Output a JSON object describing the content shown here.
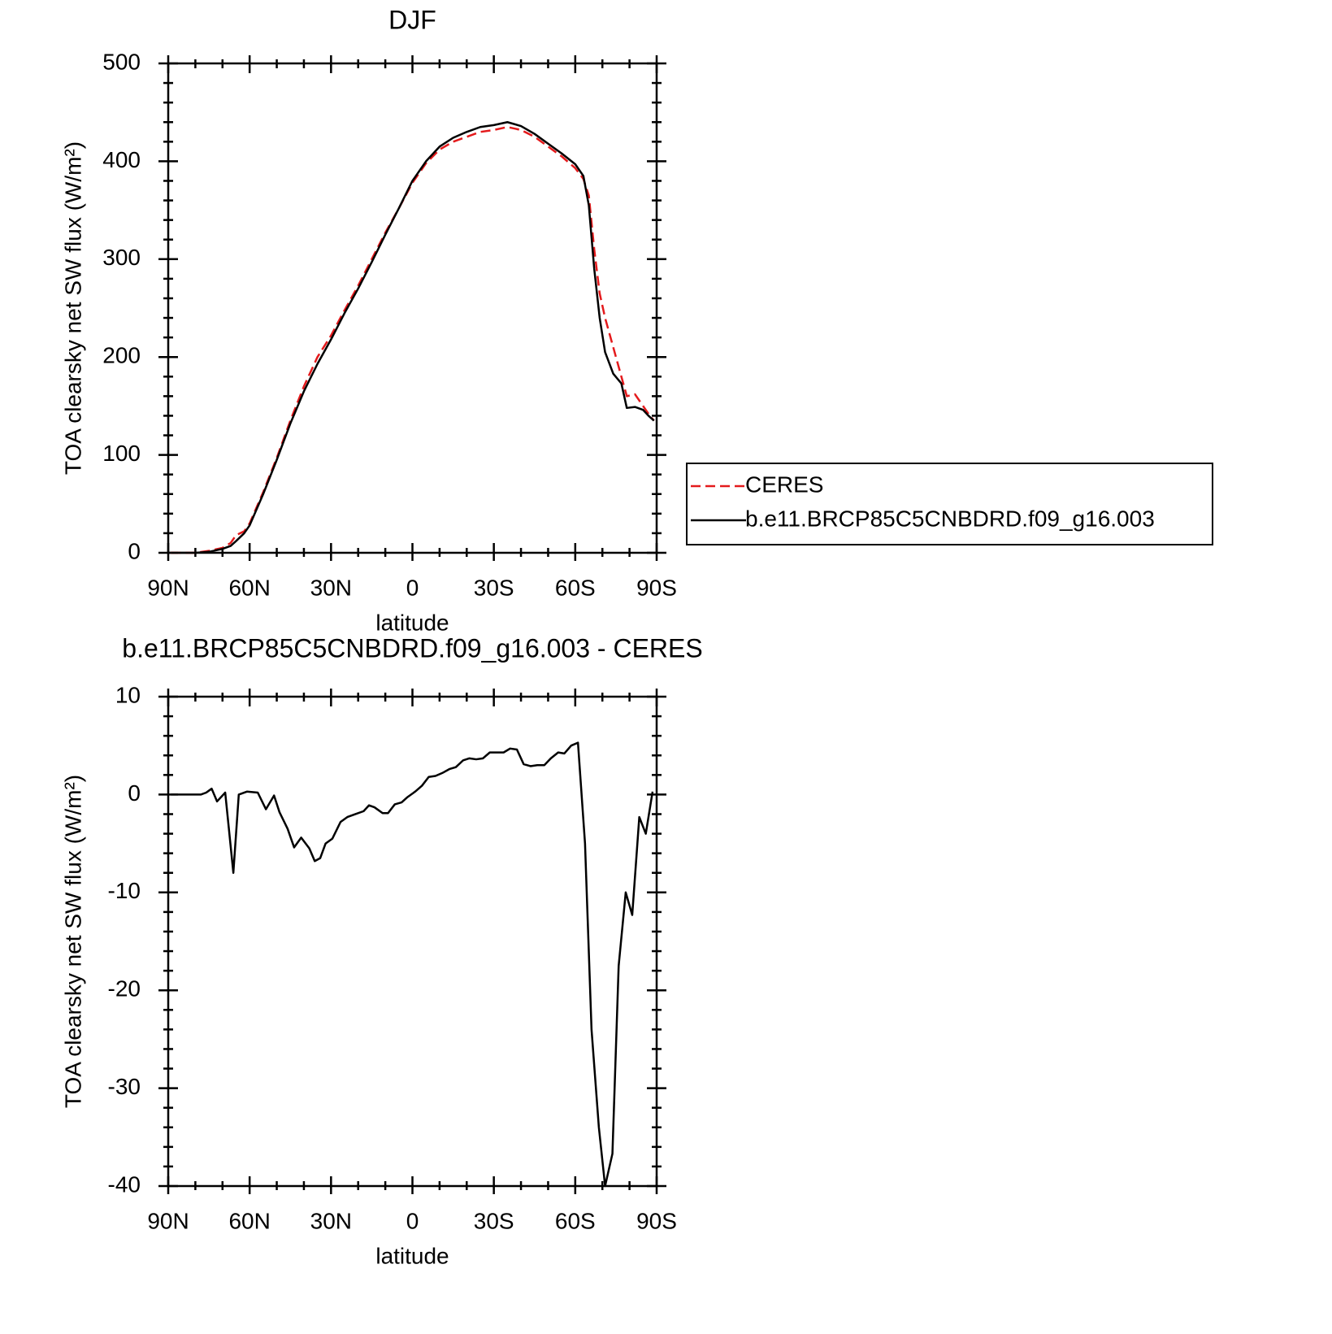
{
  "chart_data": [
    {
      "type": "line",
      "title": "DJF",
      "xlabel": "latitude",
      "ylabel": "TOA clearsky net SW flux (W/m²)",
      "x": [
        89,
        85,
        80,
        75,
        70,
        67,
        65,
        62,
        60,
        55,
        50,
        45,
        40,
        35,
        30,
        25,
        20,
        15,
        10,
        5,
        0,
        -5,
        -10,
        -15,
        -20,
        -25,
        -30,
        -35,
        -40,
        -45,
        -50,
        -55,
        -60,
        -63,
        -65,
        -67,
        -69,
        -71,
        -74,
        -77,
        -79,
        -82,
        -85,
        -87,
        -89
      ],
      "series": [
        {
          "name": "CERES",
          "color": "#e41a1c",
          "dashed": true,
          "values": [
            0,
            0,
            0,
            2,
            5,
            10,
            18,
            22,
            30,
            62,
            97,
            135,
            170,
            200,
            222,
            248,
            273,
            300,
            327,
            352,
            378,
            398,
            412,
            420,
            425,
            430,
            432,
            435,
            432,
            425,
            415,
            405,
            393,
            382,
            365,
            310,
            265,
            240,
            210,
            180,
            160,
            162,
            150,
            142,
            135
          ]
        },
        {
          "name": "b.e11.BRCP85C5CNBDRD.f09_g16.003",
          "color": "#000000",
          "dashed": false,
          "values": [
            0,
            0,
            0,
            1,
            4,
            7,
            12,
            20,
            28,
            60,
            95,
            132,
            165,
            193,
            218,
            245,
            270,
            297,
            325,
            352,
            380,
            400,
            415,
            424,
            430,
            435,
            437,
            440,
            436,
            428,
            418,
            408,
            397,
            385,
            355,
            290,
            240,
            205,
            183,
            173,
            148,
            149,
            146,
            140,
            135
          ]
        }
      ],
      "xlim": [
        90,
        -90
      ],
      "xticks": [
        {
          "value": 90,
          "label": "90N"
        },
        {
          "value": 60,
          "label": "60N"
        },
        {
          "value": 30,
          "label": "30N"
        },
        0,
        {
          "value": -30,
          "label": "30S"
        },
        {
          "value": -60,
          "label": "60S"
        },
        {
          "value": -90,
          "label": "90S"
        }
      ],
      "ylim": [
        0,
        500
      ],
      "yticks": [
        0,
        100,
        200,
        300,
        400,
        500
      ],
      "legend": "right"
    },
    {
      "type": "line",
      "title": "b.e11.BRCP85C5CNBDRD.f09_g16.003 - CERES",
      "xlabel": "latitude",
      "ylabel": "TOA clearsky net SW flux (W/m²)",
      "x": [
        89,
        78,
        76,
        74,
        72,
        69,
        66,
        64,
        61,
        57,
        54,
        51,
        49,
        46,
        43.6,
        41,
        38,
        36,
        34,
        32,
        29.5,
        26.5,
        24,
        21,
        18,
        16,
        14,
        11,
        9,
        6.5,
        4,
        2,
        -1,
        -3.5,
        -6,
        -8.5,
        -11,
        -13.6,
        -16,
        -18.7,
        -21,
        -23.5,
        -26,
        -28.5,
        -31,
        -33.6,
        -36,
        -38.5,
        -41,
        -43.5,
        -46,
        -48.6,
        -51,
        -53.7,
        -56,
        -58.5,
        -61,
        -63.6,
        -66,
        -68.7,
        -71,
        -73.7,
        -76,
        -78.6,
        -81,
        -83.6,
        -86,
        -88.5
      ],
      "values": [
        0,
        0,
        0.2,
        0.6,
        -0.7,
        0.2,
        -8,
        0,
        0.3,
        0.2,
        -1.5,
        -0.1,
        -1.8,
        -3.5,
        -5.4,
        -4.4,
        -5.5,
        -6.8,
        -6.5,
        -5,
        -4.5,
        -2.8,
        -2.3,
        -2,
        -1.7,
        -1.1,
        -1.3,
        -1.9,
        -1.9,
        -1,
        -0.8,
        -0.3,
        0.3,
        0.9,
        1.8,
        1.9,
        2.2,
        2.6,
        2.8,
        3.5,
        3.7,
        3.6,
        3.7,
        4.3,
        4.3,
        4.3,
        4.7,
        4.6,
        3.1,
        2.9,
        3,
        3,
        3.7,
        4.3,
        4.2,
        5,
        5.3,
        -5,
        -24,
        -34,
        -40,
        -36.7,
        -17.5,
        -10,
        -12.3,
        -2.3,
        -4,
        0.3
      ],
      "color": "#000000",
      "xlim": [
        90,
        -90
      ],
      "xticks": [
        {
          "value": 90,
          "label": "90N"
        },
        {
          "value": 60,
          "label": "60N"
        },
        {
          "value": 30,
          "label": "30N"
        },
        0,
        {
          "value": -30,
          "label": "30S"
        },
        {
          "value": -60,
          "label": "60S"
        },
        {
          "value": -90,
          "label": "90S"
        }
      ],
      "ylim": [
        -40,
        10
      ],
      "yticks": [
        -40,
        -30,
        -20,
        -10,
        0,
        10
      ]
    }
  ]
}
